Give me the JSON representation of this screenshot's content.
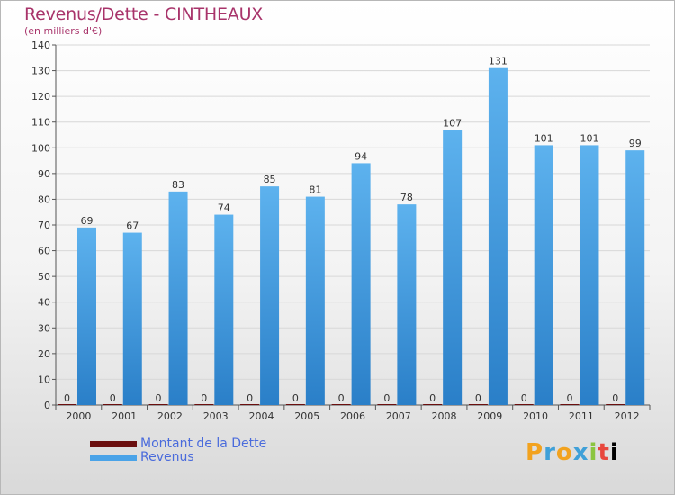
{
  "chart_data": {
    "type": "bar",
    "title": "Revenus/Dette - CINTHEAUX",
    "subtitle": "(en milliers d'€)",
    "categories": [
      "2000",
      "2001",
      "2002",
      "2003",
      "2004",
      "2005",
      "2006",
      "2007",
      "2008",
      "2009",
      "2010",
      "2011",
      "2012"
    ],
    "series": [
      {
        "name": "Montant de la Dette",
        "color": "#6b0f0f",
        "values": [
          0,
          0,
          0,
          0,
          0,
          0,
          0,
          0,
          0,
          0,
          0,
          0,
          0
        ]
      },
      {
        "name": "Revenus",
        "color": "#4aa3e8",
        "values": [
          69,
          67,
          83,
          74,
          85,
          81,
          94,
          78,
          107,
          131,
          101,
          101,
          99
        ]
      }
    ],
    "ylim": [
      0,
      140
    ],
    "yticks": [
      0,
      10,
      20,
      30,
      40,
      50,
      60,
      70,
      80,
      90,
      100,
      110,
      120,
      130,
      140
    ],
    "grid": true,
    "legend_position": "bottom-left"
  },
  "logo": {
    "letters": [
      "P",
      "r",
      "o",
      "x",
      "i",
      "t",
      "i"
    ]
  }
}
